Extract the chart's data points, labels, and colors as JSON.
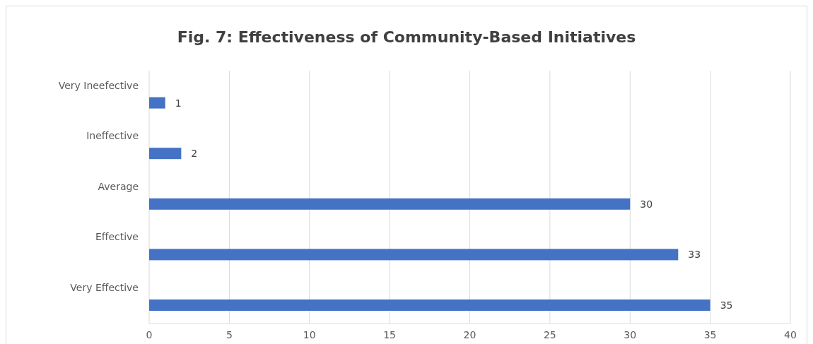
{
  "chart_data": {
    "type": "bar",
    "orientation": "horizontal",
    "title": "Fig. 7: Effectiveness of Community-Based Initiatives",
    "categories": [
      "Very Ineefective",
      "Ineffective",
      "Average",
      "Effective",
      "Very Effective"
    ],
    "values": [
      1,
      2,
      30,
      33,
      35
    ],
    "color": "#4472c4",
    "xlim": [
      0,
      40
    ],
    "xticks": [
      0,
      5,
      10,
      15,
      20,
      25,
      30,
      35,
      40
    ],
    "grid": "x",
    "data_labels": true
  }
}
